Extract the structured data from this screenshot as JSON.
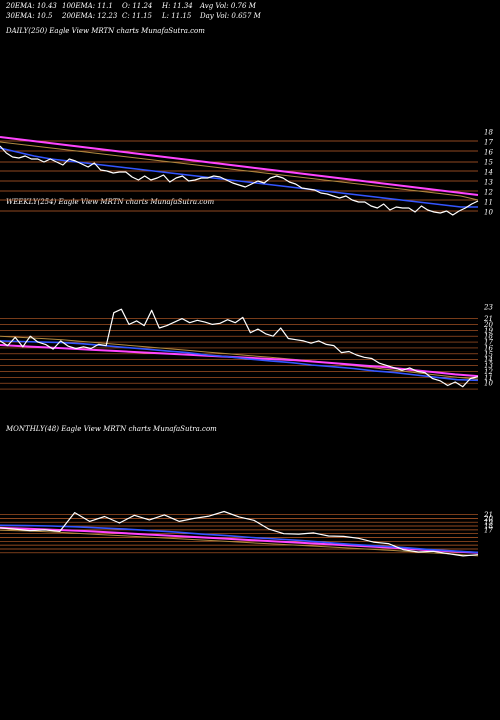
{
  "header": {
    "row1": [
      "20EMA: 10.43",
      "100EMA: 11.1",
      "O: 11.24",
      "H: 11.34",
      "Avg Vol: 0.76  M"
    ],
    "row2": [
      "30EMA: 10.5",
      "200EMA: 12.23",
      "C: 11.15",
      "L: 11.15",
      "Day Vol: 0.657 M"
    ]
  },
  "panels": [
    {
      "title": "DAILY(250) Eagle   View  MRTN  charts MunafaSutra.com"
    },
    {
      "title": "WEEKLY(254) Eagle   View  MRTN  charts MunafaSutra.com"
    },
    {
      "title": "MONTHLY(48) Eagle   View  MRTN  charts MunafaSutra.com"
    }
  ],
  "colors": {
    "background": "#000000",
    "price": "#ffffff",
    "ema_fast": "#3355ff",
    "ema_slow": "#ff44ff",
    "levels": "#c0602a",
    "ema_mid": "#b08a40"
  },
  "chart_data": [
    {
      "type": "line",
      "title": "DAILY(250) Eagle   View  MRTN  charts MunafaSutra.com",
      "ylim": [
        9.2,
        18.4
      ],
      "ticks": [
        18,
        17,
        16,
        15,
        14,
        13,
        12,
        11,
        10
      ],
      "tick_labels": [
        "18",
        "17",
        "16",
        "15",
        "14",
        "13",
        "12",
        "11",
        "10"
      ],
      "levels": [
        17.1,
        16.1,
        15.0,
        14.1,
        13.1,
        12.1,
        11.2,
        10.1
      ],
      "price": [
        16.6,
        15.9,
        15.5,
        15.4,
        15.6,
        15.3,
        15.3,
        15.0,
        15.3,
        15.0,
        14.7,
        15.3,
        15.1,
        14.8,
        14.5,
        14.9,
        14.2,
        14.1,
        13.9,
        14.0,
        14.0,
        13.5,
        13.2,
        13.6,
        13.2,
        13.4,
        13.7,
        13.0,
        13.4,
        13.6,
        13.1,
        13.2,
        13.4,
        13.4,
        13.6,
        13.5,
        13.2,
        12.9,
        12.7,
        12.5,
        12.8,
        13.1,
        12.9,
        13.4,
        13.6,
        13.4,
        13.0,
        12.8,
        12.4,
        12.3,
        12.2,
        11.9,
        11.8,
        11.6,
        11.4,
        11.6,
        11.2,
        11.0,
        11.0,
        10.6,
        10.4,
        10.8,
        10.2,
        10.5,
        10.4,
        10.4,
        10.0,
        10.6,
        10.2,
        10.0,
        9.9,
        10.1,
        9.7,
        10.1,
        10.4,
        10.8,
        11.1
      ],
      "ema_fast": [
        16.4,
        16.0,
        15.6,
        15.3,
        15.1,
        14.9,
        14.7,
        14.5,
        14.3,
        14.1,
        13.9,
        13.7,
        13.5,
        13.3,
        13.1,
        12.9,
        12.7,
        12.5,
        12.3,
        12.1,
        11.9,
        11.7,
        11.5,
        11.3,
        11.1,
        10.9,
        10.7,
        10.5,
        10.5
      ],
      "ema_slow": [
        17.5,
        17.3,
        17.1,
        16.9,
        16.7,
        16.5,
        16.3,
        16.1,
        15.9,
        15.7,
        15.5,
        15.3,
        15.1,
        14.9,
        14.7,
        14.5,
        14.3,
        14.1,
        13.9,
        13.7,
        13.5,
        13.3,
        13.1,
        12.9,
        12.7,
        12.5,
        12.3,
        12.1,
        11.9,
        11.7
      ],
      "ema_mid": [
        17.0,
        16.8,
        16.6,
        16.4,
        16.2,
        16.0,
        15.8,
        15.6,
        15.4,
        15.2,
        15.0,
        14.8,
        14.6,
        14.4,
        14.2,
        14.0,
        13.8,
        13.6,
        13.4,
        13.2,
        13.0,
        12.8,
        12.6,
        12.4,
        12.2,
        12.0,
        11.8,
        11.6,
        11.2
      ]
    },
    {
      "type": "line",
      "title": "WEEKLY(254) Eagle   View  MRTN  charts MunafaSutra.com",
      "ylim": [
        8.5,
        24.5
      ],
      "ticks": [
        23,
        21,
        20,
        19,
        18,
        17,
        16,
        15,
        14,
        13,
        12,
        11,
        10
      ],
      "tick_labels": [
        "23",
        "21",
        "20",
        "19",
        "18",
        "17",
        "16",
        "15",
        "14",
        "13",
        "12",
        "11",
        "10"
      ],
      "levels": [
        21.0,
        20.0,
        19.0,
        18.0,
        17.0,
        16.0,
        15.0,
        14.0,
        13.0,
        12.0,
        11.0,
        10.0,
        9.0
      ],
      "price": [
        17.2,
        16.4,
        17.8,
        16.2,
        18.0,
        17.0,
        16.6,
        15.8,
        17.2,
        16.3,
        15.9,
        16.2,
        15.9,
        16.6,
        16.4,
        22.0,
        22.6,
        20.0,
        20.6,
        19.8,
        22.4,
        19.4,
        19.8,
        20.4,
        21.0,
        20.3,
        20.7,
        20.4,
        20.0,
        20.2,
        20.8,
        20.3,
        21.2,
        18.6,
        19.2,
        18.4,
        18.0,
        19.4,
        17.6,
        17.4,
        17.2,
        16.8,
        17.2,
        16.6,
        16.4,
        15.2,
        15.4,
        14.8,
        14.4,
        14.2,
        13.4,
        13.0,
        12.6,
        12.2,
        12.6,
        12.0,
        11.8,
        10.8,
        10.4,
        9.6,
        10.2,
        9.4,
        10.8,
        11.1
      ],
      "ema_fast": [
        17.2,
        17.1,
        17.0,
        16.9,
        16.7,
        16.4,
        16.1,
        15.8,
        15.5,
        15.2,
        14.8,
        14.5,
        14.1,
        13.8,
        13.5,
        13.1,
        12.8,
        12.5,
        12.1,
        11.8,
        11.4,
        11.0,
        10.6,
        10.5
      ],
      "ema_slow": [
        16.5,
        16.3,
        16.1,
        15.9,
        15.7,
        15.5,
        15.3,
        15.1,
        14.9,
        14.7,
        14.5,
        14.3,
        14.1,
        13.9,
        13.6,
        13.3,
        13.0,
        12.7,
        12.3,
        11.9,
        11.5,
        11.2
      ],
      "ema_mid": [
        18.0,
        17.8,
        17.6,
        17.4,
        17.1,
        16.8,
        16.5,
        16.2,
        15.9,
        15.6,
        15.3,
        15.0,
        14.7,
        14.4,
        14.1,
        13.8,
        13.4,
        13.0,
        12.6,
        12.2,
        11.8,
        11.4,
        11.0,
        10.7
      ]
    },
    {
      "type": "line",
      "title": "MONTHLY(48) Eagle   View  MRTN  charts MunafaSutra.com",
      "ylim": [
        6.5,
        23.5
      ],
      "ticks": [
        21,
        20,
        19,
        18,
        17
      ],
      "tick_labels": [
        "21",
        "20",
        "19",
        "18",
        "17"
      ],
      "levels": [
        21.0,
        20.0,
        19.0,
        18.0,
        17.0,
        16.0,
        15.0,
        14.0,
        13.0,
        12.0,
        11.0
      ],
      "price": [
        17.5,
        17.2,
        16.8,
        17.0,
        16.6,
        21.5,
        19.2,
        20.5,
        18.8,
        20.8,
        19.6,
        20.9,
        19.2,
        20.0,
        20.6,
        21.8,
        20.4,
        19.5,
        17.2,
        16.0,
        15.9,
        16.2,
        15.4,
        15.3,
        14.8,
        13.8,
        13.4,
        11.8,
        11.2,
        11.4,
        10.8,
        10.2,
        10.5
      ],
      "ema_fast": [
        18.2,
        18.1,
        18.0,
        17.8,
        17.5,
        17.2,
        16.8,
        16.4,
        15.9,
        15.5,
        15.0,
        14.6,
        14.2,
        13.7,
        13.2,
        12.8,
        12.4,
        11.9,
        11.5,
        11.1
      ],
      "ema_slow": [
        17.5,
        17.3,
        17.0,
        16.7,
        16.3,
        15.9,
        15.5,
        15.1,
        14.7,
        14.3,
        13.9,
        13.5,
        13.1,
        12.7,
        12.3,
        11.8,
        11.4,
        11.0
      ],
      "ema_mid": [
        16.9,
        16.7,
        16.4,
        16.0,
        15.6,
        15.2,
        14.8,
        14.4,
        14.0,
        13.6,
        13.2,
        12.8,
        12.4,
        12.0,
        11.6,
        11.1,
        10.7,
        10.2
      ]
    }
  ]
}
